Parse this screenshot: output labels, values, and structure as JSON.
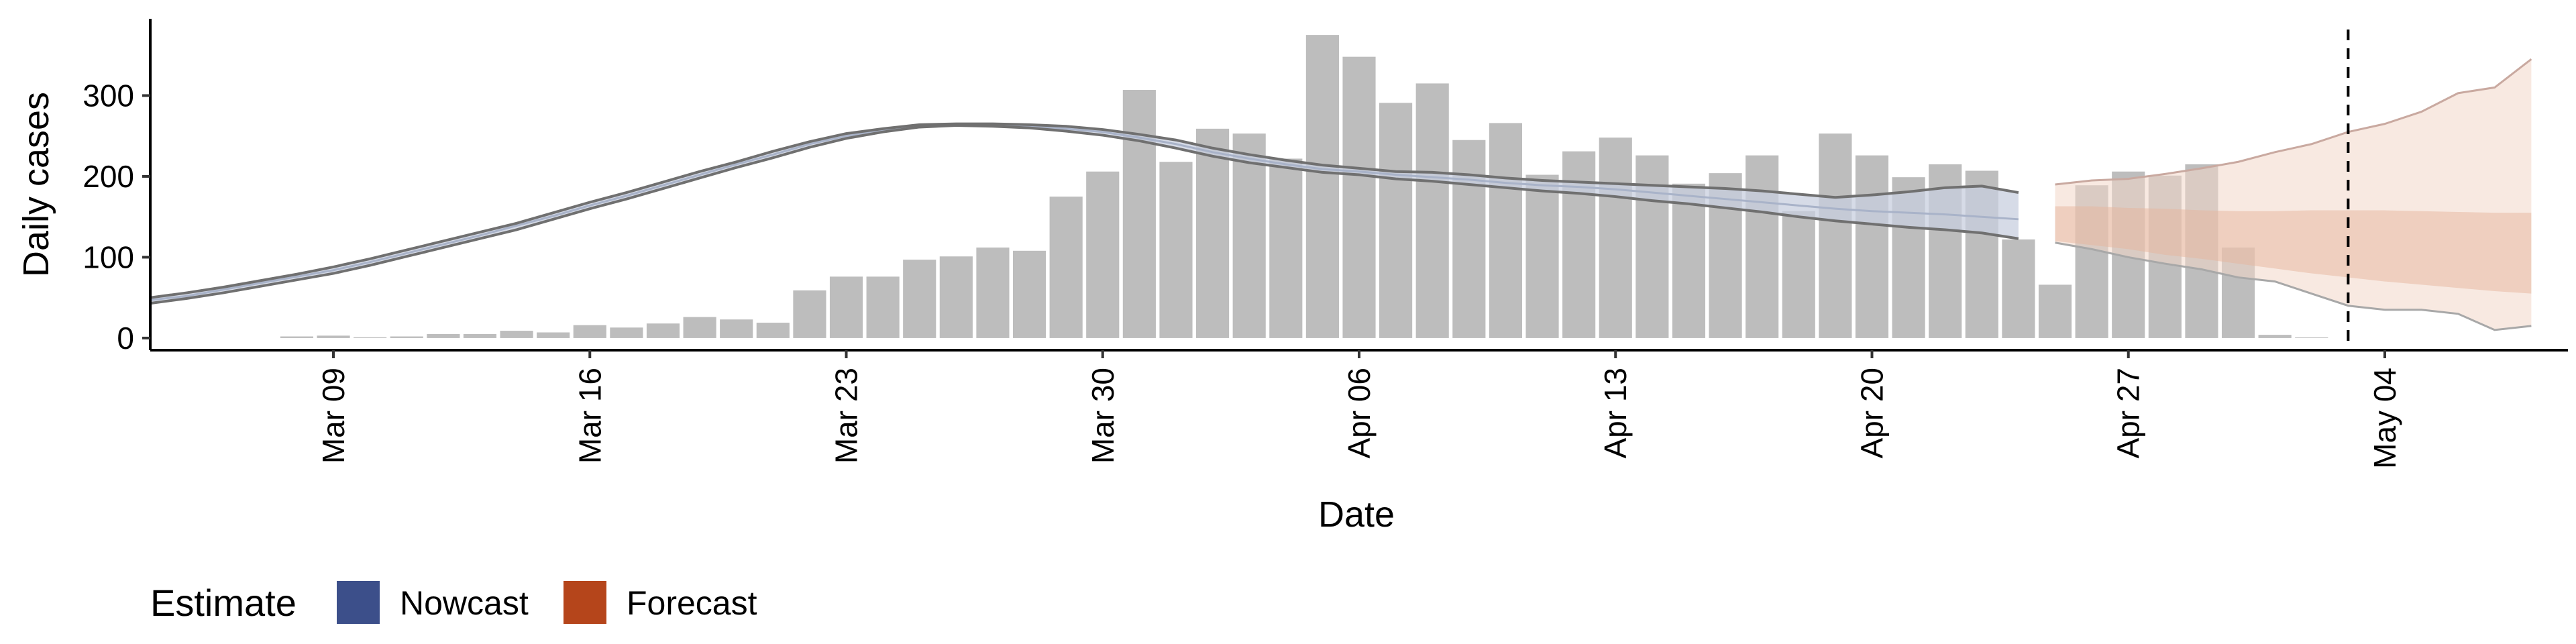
{
  "chart_data": {
    "type": "bar",
    "xlabel": "Date",
    "ylabel": "Daily cases",
    "ylim": [
      -15,
      395
    ],
    "yticks": [
      0,
      100,
      200,
      300
    ],
    "x_range": [
      "2020-03-04",
      "2020-05-09"
    ],
    "x_ticks": [
      {
        "date": "2020-03-09",
        "label": "Mar 09"
      },
      {
        "date": "2020-03-16",
        "label": "Mar 16"
      },
      {
        "date": "2020-03-23",
        "label": "Mar 23"
      },
      {
        "date": "2020-03-30",
        "label": "Mar 30"
      },
      {
        "date": "2020-04-06",
        "label": "Apr 06"
      },
      {
        "date": "2020-04-13",
        "label": "Apr 13"
      },
      {
        "date": "2020-04-20",
        "label": "Apr 20"
      },
      {
        "date": "2020-04-27",
        "label": "Apr 27"
      },
      {
        "date": "2020-05-04",
        "label": "May 04"
      }
    ],
    "bars": {
      "name": "Daily cases",
      "color": "#bdbdbd",
      "x": [
        "2020-03-08",
        "2020-03-09",
        "2020-03-10",
        "2020-03-11",
        "2020-03-12",
        "2020-03-13",
        "2020-03-14",
        "2020-03-15",
        "2020-03-16",
        "2020-03-17",
        "2020-03-18",
        "2020-03-19",
        "2020-03-20",
        "2020-03-21",
        "2020-03-22",
        "2020-03-23",
        "2020-03-24",
        "2020-03-25",
        "2020-03-26",
        "2020-03-27",
        "2020-03-28",
        "2020-03-29",
        "2020-03-30",
        "2020-03-31",
        "2020-04-01",
        "2020-04-02",
        "2020-04-03",
        "2020-04-04",
        "2020-04-05",
        "2020-04-06",
        "2020-04-07",
        "2020-04-08",
        "2020-04-09",
        "2020-04-10",
        "2020-04-11",
        "2020-04-12",
        "2020-04-13",
        "2020-04-14",
        "2020-04-15",
        "2020-04-16",
        "2020-04-17",
        "2020-04-18",
        "2020-04-19",
        "2020-04-20",
        "2020-04-21",
        "2020-04-22",
        "2020-04-23",
        "2020-04-24",
        "2020-04-25",
        "2020-04-26",
        "2020-04-27",
        "2020-04-28",
        "2020-04-29",
        "2020-04-30",
        "2020-05-01",
        "2020-05-02"
      ],
      "values": [
        2,
        3,
        1,
        2,
        5,
        5,
        9,
        7,
        16,
        13,
        18,
        26,
        23,
        19,
        59,
        76,
        76,
        97,
        101,
        112,
        108,
        175,
        206,
        307,
        218,
        259,
        253,
        222,
        375,
        348,
        291,
        315,
        245,
        266,
        202,
        231,
        248,
        226,
        191,
        204,
        226,
        157,
        253,
        226,
        199,
        215,
        207,
        122,
        66,
        189,
        206,
        201,
        215,
        112,
        4,
        0
      ]
    },
    "series": [
      {
        "name": "Nowcast",
        "color": "#3c4f8a",
        "x": [
          "2020-03-04",
          "2020-03-05",
          "2020-03-06",
          "2020-03-07",
          "2020-03-08",
          "2020-03-09",
          "2020-03-10",
          "2020-03-11",
          "2020-03-12",
          "2020-03-13",
          "2020-03-14",
          "2020-03-15",
          "2020-03-16",
          "2020-03-17",
          "2020-03-18",
          "2020-03-19",
          "2020-03-20",
          "2020-03-21",
          "2020-03-22",
          "2020-03-23",
          "2020-03-24",
          "2020-03-25",
          "2020-03-26",
          "2020-03-27",
          "2020-03-28",
          "2020-03-29",
          "2020-03-30",
          "2020-03-31",
          "2020-04-01",
          "2020-04-02",
          "2020-04-03",
          "2020-04-04",
          "2020-04-05",
          "2020-04-06",
          "2020-04-07",
          "2020-04-08",
          "2020-04-09",
          "2020-04-10",
          "2020-04-11",
          "2020-04-12",
          "2020-04-13",
          "2020-04-14",
          "2020-04-15",
          "2020-04-16",
          "2020-04-17",
          "2020-04-18",
          "2020-04-19",
          "2020-04-20",
          "2020-04-21",
          "2020-04-22",
          "2020-04-23",
          "2020-04-24"
        ],
        "upper": [
          50,
          56,
          63,
          71,
          79,
          88,
          98,
          109,
          120,
          131,
          142,
          155,
          168,
          180,
          193,
          206,
          218,
          231,
          243,
          253,
          259,
          264,
          265,
          265,
          264,
          262,
          258,
          252,
          245,
          235,
          227,
          220,
          214,
          210,
          206,
          205,
          202,
          198,
          195,
          193,
          191,
          189,
          187,
          185,
          182,
          178,
          174,
          177,
          181,
          186,
          188,
          180
        ],
        "median": [
          47,
          52,
          60,
          68,
          76,
          84,
          94,
          105,
          116,
          127,
          139,
          151,
          164,
          176,
          189,
          202,
          215,
          227,
          240,
          250,
          257,
          262,
          264,
          263,
          262,
          259,
          255,
          248,
          240,
          230,
          222,
          215,
          209,
          206,
          202,
          199,
          196,
          192,
          189,
          187,
          184,
          180,
          176,
          172,
          168,
          164,
          160,
          157,
          155,
          153,
          150,
          147
        ],
        "lower": [
          43,
          49,
          56,
          64,
          72,
          80,
          90,
          101,
          112,
          123,
          134,
          147,
          160,
          172,
          185,
          198,
          211,
          223,
          236,
          247,
          255,
          261,
          263,
          262,
          260,
          256,
          251,
          244,
          235,
          225,
          217,
          211,
          205,
          202,
          197,
          194,
          190,
          186,
          182,
          179,
          175,
          170,
          166,
          161,
          156,
          150,
          145,
          141,
          137,
          134,
          130,
          123
        ]
      },
      {
        "name": "Forecast",
        "color": "#b5451b",
        "x": [
          "2020-04-25",
          "2020-04-26",
          "2020-04-27",
          "2020-04-28",
          "2020-04-29",
          "2020-04-30",
          "2020-05-01",
          "2020-05-02",
          "2020-05-03",
          "2020-05-04",
          "2020-05-05",
          "2020-05-06",
          "2020-05-07",
          "2020-05-08"
        ],
        "upper90": [
          190,
          195,
          197,
          203,
          210,
          218,
          230,
          240,
          255,
          265,
          280,
          303,
          310,
          345
        ],
        "upper50": [
          163,
          163,
          161,
          160,
          158,
          157,
          157,
          158,
          158,
          158,
          157,
          156,
          155,
          155
        ],
        "lower50": [
          120,
          115,
          110,
          103,
          98,
          92,
          86,
          80,
          75,
          70,
          66,
          62,
          58,
          55
        ],
        "lower90": [
          118,
          110,
          100,
          92,
          85,
          75,
          70,
          55,
          40,
          35,
          35,
          30,
          10,
          15
        ]
      }
    ],
    "vline": {
      "x": "2020-05-03",
      "style": "dashed"
    },
    "legend": {
      "title": "Estimate",
      "position": "bottom-left",
      "entries": [
        {
          "label": "Nowcast",
          "color": "#3c4f8a"
        },
        {
          "label": "Forecast",
          "color": "#b5451b"
        }
      ]
    },
    "grid": false
  }
}
